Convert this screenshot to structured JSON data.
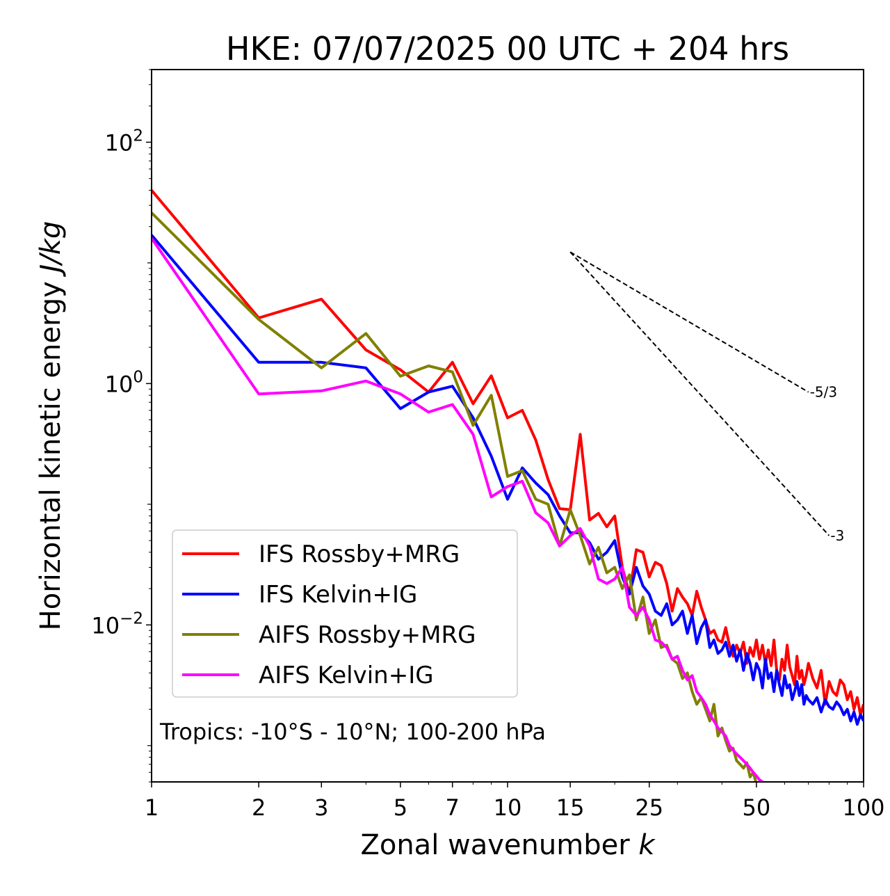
{
  "chart_data": {
    "type": "line",
    "title": "HKE: 07/07/2025 00 UTC + 204 hrs",
    "xlabel": "Zonal wavenumber",
    "xlabel_var": "k",
    "ylabel": "Horizontal kinetic energy",
    "ylabel_unit": "J/kg",
    "xscale": "log",
    "yscale": "log",
    "xlim": [
      1,
      100
    ],
    "ylim": [
      0.0005,
      400
    ],
    "grid": false,
    "legend_position": "lower-left",
    "annotation": "Tropics: -10°S - 10°N; 100-200 hPa",
    "x_ticks": [
      {
        "value": 1,
        "label": "1"
      },
      {
        "value": 2,
        "label": "2"
      },
      {
        "value": 3,
        "label": "3"
      },
      {
        "value": 5,
        "label": "5"
      },
      {
        "value": 7,
        "label": "7"
      },
      {
        "value": 10,
        "label": "10"
      },
      {
        "value": 15,
        "label": "15"
      },
      {
        "value": 25,
        "label": "25"
      },
      {
        "value": 50,
        "label": "50"
      },
      {
        "value": 100,
        "label": "100"
      }
    ],
    "y_ticks": [
      {
        "value": 100,
        "base": "10",
        "exp": "2"
      },
      {
        "value": 1,
        "base": "10",
        "exp": "0"
      },
      {
        "value": 0.01,
        "base": "10",
        "exp": "−2"
      }
    ],
    "reference_lines": [
      {
        "label": "-5/3",
        "x_start": 15,
        "y_start": 12.3,
        "x_end": 70,
        "y_end": 0.85,
        "color": "#000000"
      },
      {
        "label": "-3",
        "x_start": 15,
        "y_start": 12.3,
        "x_end": 80,
        "y_end": 0.055,
        "color": "#000000"
      }
    ],
    "series": [
      {
        "name": "IFS Rossby+MRG",
        "color": "#ff0000",
        "x": [
          1,
          2,
          3,
          4,
          5,
          6,
          7,
          8,
          9,
          10,
          11,
          12,
          13,
          14,
          15,
          16,
          17,
          18,
          19,
          20,
          21,
          22,
          23,
          24,
          25,
          26,
          27,
          28,
          29,
          30,
          31,
          32,
          33,
          34,
          35,
          36,
          37,
          38,
          39,
          40,
          41,
          42,
          43,
          44,
          45,
          46,
          47,
          48,
          49,
          50,
          51,
          52,
          53,
          54,
          55,
          56,
          57,
          58,
          59,
          60,
          61,
          62,
          63,
          64,
          65,
          66,
          67,
          68,
          69,
          70,
          72,
          74,
          76,
          78,
          80,
          82,
          84,
          86,
          88,
          90,
          92,
          94,
          96,
          98,
          100
        ],
        "y": [
          40.0,
          3.5,
          5.0,
          1.9,
          1.3,
          0.85,
          1.5,
          0.68,
          1.16,
          0.52,
          0.6,
          0.34,
          0.16,
          0.092,
          0.09,
          0.38,
          0.074,
          0.084,
          0.065,
          0.08,
          0.03,
          0.018,
          0.042,
          0.04,
          0.025,
          0.033,
          0.031,
          0.022,
          0.013,
          0.02,
          0.017,
          0.015,
          0.012,
          0.019,
          0.014,
          0.011,
          0.0085,
          0.009,
          0.0075,
          0.0072,
          0.0095,
          0.0068,
          0.0055,
          0.0068,
          0.0058,
          0.0072,
          0.0048,
          0.0065,
          0.0055,
          0.0075,
          0.0052,
          0.0068,
          0.0048,
          0.0062,
          0.0046,
          0.0075,
          0.0042,
          0.0035,
          0.0052,
          0.0042,
          0.0068,
          0.0045,
          0.0038,
          0.0032,
          0.0055,
          0.0036,
          0.0042,
          0.0032,
          0.0038,
          0.0048,
          0.0036,
          0.003,
          0.0042,
          0.0022,
          0.0034,
          0.0028,
          0.0026,
          0.0035,
          0.0032,
          0.0024,
          0.0028,
          0.002,
          0.0025,
          0.0018,
          0.0022
        ]
      },
      {
        "name": "IFS Kelvin+IG",
        "color": "#0000ff",
        "x": [
          1,
          2,
          3,
          4,
          5,
          6,
          7,
          8,
          9,
          10,
          11,
          12,
          13,
          14,
          15,
          16,
          17,
          18,
          19,
          20,
          21,
          22,
          23,
          24,
          25,
          26,
          27,
          28,
          29,
          30,
          31,
          32,
          33,
          34,
          35,
          36,
          37,
          38,
          39,
          40,
          41,
          42,
          43,
          44,
          45,
          46,
          47,
          48,
          49,
          50,
          51,
          52,
          53,
          54,
          55,
          56,
          57,
          58,
          59,
          60,
          61,
          62,
          63,
          64,
          65,
          66,
          67,
          68,
          69,
          70,
          72,
          74,
          76,
          78,
          80,
          82,
          84,
          86,
          88,
          90,
          92,
          94,
          96,
          98,
          100
        ],
        "y": [
          17.0,
          1.5,
          1.5,
          1.35,
          0.62,
          0.85,
          0.95,
          0.52,
          0.25,
          0.11,
          0.2,
          0.15,
          0.12,
          0.08,
          0.058,
          0.058,
          0.048,
          0.035,
          0.04,
          0.05,
          0.025,
          0.018,
          0.03,
          0.021,
          0.018,
          0.013,
          0.012,
          0.015,
          0.01,
          0.011,
          0.013,
          0.0085,
          0.012,
          0.007,
          0.0095,
          0.011,
          0.0065,
          0.0075,
          0.0058,
          0.0062,
          0.0072,
          0.0055,
          0.0068,
          0.005,
          0.0062,
          0.0042,
          0.0058,
          0.0048,
          0.0035,
          0.0048,
          0.0042,
          0.003,
          0.0052,
          0.0036,
          0.004,
          0.0028,
          0.0042,
          0.0032,
          0.0026,
          0.0038,
          0.003,
          0.0032,
          0.0024,
          0.0028,
          0.0034,
          0.0026,
          0.0032,
          0.0022,
          0.0026,
          0.0024,
          0.0022,
          0.0025,
          0.0019,
          0.0024,
          0.0021,
          0.002,
          0.0023,
          0.0021,
          0.0018,
          0.002,
          0.0016,
          0.0019,
          0.0015,
          0.0018,
          0.0016
        ]
      },
      {
        "name": "AIFS Rossby+MRG",
        "color": "#808000",
        "x": [
          1,
          2,
          3,
          4,
          5,
          6,
          7,
          8,
          9,
          10,
          11,
          12,
          13,
          14,
          15,
          16,
          17,
          18,
          19,
          20,
          21,
          22,
          23,
          24,
          25,
          26,
          27,
          28,
          29,
          30,
          31,
          32,
          33,
          34,
          35,
          36,
          37,
          38,
          39,
          40,
          41,
          42,
          43,
          44,
          45,
          46,
          47,
          48,
          49,
          50
        ],
        "y": [
          26.0,
          3.4,
          1.35,
          2.6,
          1.15,
          1.4,
          1.25,
          0.45,
          0.8,
          0.17,
          0.19,
          0.11,
          0.1,
          0.045,
          0.09,
          0.055,
          0.032,
          0.044,
          0.027,
          0.03,
          0.02,
          0.026,
          0.011,
          0.017,
          0.0085,
          0.011,
          0.0065,
          0.0068,
          0.0052,
          0.0048,
          0.0036,
          0.004,
          0.0028,
          0.0022,
          0.0025,
          0.002,
          0.0016,
          0.0022,
          0.0012,
          0.0014,
          0.0011,
          0.0009,
          0.00095,
          0.00075,
          0.0007,
          0.00065,
          0.00072,
          0.00055,
          0.0006,
          0.00048
        ]
      },
      {
        "name": "AIFS Kelvin+IG",
        "color": "#ff00ff",
        "x": [
          1,
          2,
          3,
          4,
          5,
          6,
          7,
          8,
          9,
          10,
          11,
          12,
          13,
          14,
          15,
          16,
          17,
          18,
          19,
          20,
          21,
          22,
          23,
          24,
          25,
          26,
          27,
          28,
          29,
          30,
          31,
          32,
          33,
          34,
          35,
          36,
          37,
          38,
          39,
          40,
          41,
          42,
          43,
          44,
          45,
          46,
          47,
          48,
          49,
          50,
          51,
          52,
          53
        ],
        "y": [
          16.0,
          0.82,
          0.87,
          1.05,
          0.82,
          0.58,
          0.67,
          0.38,
          0.115,
          0.14,
          0.155,
          0.085,
          0.07,
          0.045,
          0.055,
          0.063,
          0.045,
          0.024,
          0.022,
          0.024,
          0.03,
          0.014,
          0.012,
          0.014,
          0.011,
          0.0075,
          0.0072,
          0.0065,
          0.0052,
          0.0055,
          0.0042,
          0.0035,
          0.0038,
          0.0028,
          0.0025,
          0.0022,
          0.0018,
          0.0016,
          0.0014,
          0.0013,
          0.0012,
          0.001,
          0.00092,
          0.00085,
          0.0008,
          0.00075,
          0.0007,
          0.00065,
          0.0006,
          0.00056,
          0.00052,
          0.0005,
          0.00048
        ]
      }
    ]
  }
}
